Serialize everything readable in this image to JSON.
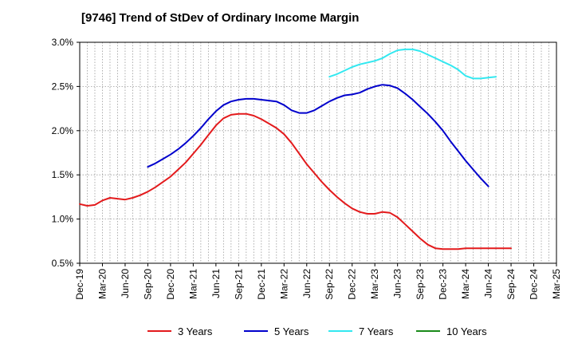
{
  "chart_data": {
    "type": "line",
    "title": "[9746]  Trend of StDev of Ordinary Income Margin",
    "xlabel": "",
    "ylabel": "",
    "x_ticks": [
      "Dec-19",
      "Mar-20",
      "Jun-20",
      "Sep-20",
      "Dec-20",
      "Mar-21",
      "Jun-21",
      "Sep-21",
      "Dec-21",
      "Mar-22",
      "Jun-22",
      "Sep-22",
      "Dec-22",
      "Mar-23",
      "Jun-23",
      "Sep-23",
      "Dec-23",
      "Mar-24",
      "Jun-24",
      "Sep-24",
      "Dec-24",
      "Mar-25"
    ],
    "y_ticks": [
      "0.5%",
      "1.0%",
      "1.5%",
      "2.0%",
      "2.5%",
      "3.0%"
    ],
    "ylim": [
      0.5,
      3.0
    ],
    "grid": true,
    "legend_position": "bottom",
    "series": [
      {
        "name": "3 Years",
        "color": "#e31a1c",
        "points": [
          [
            "Dec-19",
            1.17
          ],
          [
            "Jan-20",
            1.15
          ],
          [
            "Feb-20",
            1.16
          ],
          [
            "Mar-20",
            1.21
          ],
          [
            "Apr-20",
            1.24
          ],
          [
            "May-20",
            1.23
          ],
          [
            "Jun-20",
            1.22
          ],
          [
            "Jul-20",
            1.24
          ],
          [
            "Aug-20",
            1.27
          ],
          [
            "Sep-20",
            1.31
          ],
          [
            "Oct-20",
            1.36
          ],
          [
            "Nov-20",
            1.42
          ],
          [
            "Dec-20",
            1.48
          ],
          [
            "Jan-21",
            1.56
          ],
          [
            "Feb-21",
            1.64
          ],
          [
            "Mar-21",
            1.74
          ],
          [
            "Apr-21",
            1.84
          ],
          [
            "May-21",
            1.95
          ],
          [
            "Jun-21",
            2.06
          ],
          [
            "Jul-21",
            2.14
          ],
          [
            "Aug-21",
            2.18
          ],
          [
            "Sep-21",
            2.19
          ],
          [
            "Oct-21",
            2.19
          ],
          [
            "Nov-21",
            2.17
          ],
          [
            "Dec-21",
            2.13
          ],
          [
            "Jan-22",
            2.08
          ],
          [
            "Feb-22",
            2.03
          ],
          [
            "Mar-22",
            1.96
          ],
          [
            "Apr-22",
            1.86
          ],
          [
            "May-22",
            1.74
          ],
          [
            "Jun-22",
            1.62
          ],
          [
            "Jul-22",
            1.52
          ],
          [
            "Aug-22",
            1.42
          ],
          [
            "Sep-22",
            1.33
          ],
          [
            "Oct-22",
            1.25
          ],
          [
            "Nov-22",
            1.18
          ],
          [
            "Dec-22",
            1.12
          ],
          [
            "Jan-23",
            1.08
          ],
          [
            "Feb-23",
            1.06
          ],
          [
            "Mar-23",
            1.06
          ],
          [
            "Apr-23",
            1.08
          ],
          [
            "May-23",
            1.07
          ],
          [
            "Jun-23",
            1.02
          ],
          [
            "Jul-23",
            0.94
          ],
          [
            "Aug-23",
            0.86
          ],
          [
            "Sep-23",
            0.78
          ],
          [
            "Oct-23",
            0.71
          ],
          [
            "Nov-23",
            0.67
          ],
          [
            "Dec-23",
            0.66
          ],
          [
            "Jan-24",
            0.66
          ],
          [
            "Feb-24",
            0.66
          ],
          [
            "Mar-24",
            0.67
          ],
          [
            "Apr-24",
            0.67
          ],
          [
            "May-24",
            0.67
          ],
          [
            "Jun-24",
            0.67
          ],
          [
            "Jul-24",
            0.67
          ],
          [
            "Aug-24",
            0.67
          ],
          [
            "Sep-24",
            0.67
          ]
        ]
      },
      {
        "name": "5 Years",
        "color": "#0000cc",
        "points": [
          [
            "Sep-20",
            1.59
          ],
          [
            "Oct-20",
            1.63
          ],
          [
            "Nov-20",
            1.68
          ],
          [
            "Dec-20",
            1.73
          ],
          [
            "Jan-21",
            1.79
          ],
          [
            "Feb-21",
            1.86
          ],
          [
            "Mar-21",
            1.94
          ],
          [
            "Apr-21",
            2.03
          ],
          [
            "May-21",
            2.13
          ],
          [
            "Jun-21",
            2.22
          ],
          [
            "Jul-21",
            2.29
          ],
          [
            "Aug-21",
            2.33
          ],
          [
            "Sep-21",
            2.35
          ],
          [
            "Oct-21",
            2.36
          ],
          [
            "Nov-21",
            2.36
          ],
          [
            "Dec-21",
            2.35
          ],
          [
            "Jan-22",
            2.34
          ],
          [
            "Feb-22",
            2.33
          ],
          [
            "Mar-22",
            2.29
          ],
          [
            "Apr-22",
            2.23
          ],
          [
            "May-22",
            2.2
          ],
          [
            "Jun-22",
            2.2
          ],
          [
            "Jul-22",
            2.23
          ],
          [
            "Aug-22",
            2.28
          ],
          [
            "Sep-22",
            2.33
          ],
          [
            "Oct-22",
            2.37
          ],
          [
            "Nov-22",
            2.4
          ],
          [
            "Dec-22",
            2.41
          ],
          [
            "Jan-23",
            2.43
          ],
          [
            "Feb-23",
            2.47
          ],
          [
            "Mar-23",
            2.5
          ],
          [
            "Apr-23",
            2.52
          ],
          [
            "May-23",
            2.51
          ],
          [
            "Jun-23",
            2.48
          ],
          [
            "Jul-23",
            2.42
          ],
          [
            "Aug-23",
            2.35
          ],
          [
            "Sep-23",
            2.27
          ],
          [
            "Oct-23",
            2.19
          ],
          [
            "Nov-23",
            2.1
          ],
          [
            "Dec-23",
            2.0
          ],
          [
            "Jan-24",
            1.88
          ],
          [
            "Feb-24",
            1.77
          ],
          [
            "Mar-24",
            1.66
          ],
          [
            "Apr-24",
            1.56
          ],
          [
            "May-24",
            1.46
          ],
          [
            "Jun-24",
            1.37
          ]
        ]
      },
      {
        "name": "7 Years",
        "color": "#33e8f0",
        "points": [
          [
            "Sep-22",
            2.61
          ],
          [
            "Oct-22",
            2.64
          ],
          [
            "Nov-22",
            2.68
          ],
          [
            "Dec-22",
            2.72
          ],
          [
            "Jan-23",
            2.75
          ],
          [
            "Feb-23",
            2.77
          ],
          [
            "Mar-23",
            2.79
          ],
          [
            "Apr-23",
            2.82
          ],
          [
            "May-23",
            2.87
          ],
          [
            "Jun-23",
            2.91
          ],
          [
            "Jul-23",
            2.92
          ],
          [
            "Aug-23",
            2.92
          ],
          [
            "Sep-23",
            2.9
          ],
          [
            "Oct-23",
            2.86
          ],
          [
            "Nov-23",
            2.82
          ],
          [
            "Dec-23",
            2.78
          ],
          [
            "Jan-24",
            2.74
          ],
          [
            "Feb-24",
            2.69
          ],
          [
            "Mar-24",
            2.62
          ],
          [
            "Apr-24",
            2.59
          ],
          [
            "May-24",
            2.59
          ],
          [
            "Jun-24",
            2.6
          ],
          [
            "Jul-24",
            2.61
          ]
        ]
      },
      {
        "name": "10 Years",
        "color": "#1a8a1a",
        "points": []
      }
    ]
  }
}
